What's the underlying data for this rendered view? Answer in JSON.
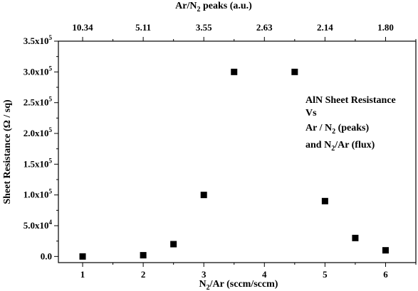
{
  "chart_data": {
    "type": "scatter",
    "title": "",
    "xlabel": "N",
    "xlabel_sub": "2",
    "xlabel_rest": "/Ar (sccm/sccm)",
    "ylabel": "Sheet Resistance (Ω / sq)",
    "top_xlabel": "Ar/N",
    "top_xlabel_sub": "2",
    "top_xlabel_rest": " peaks (a.u.)",
    "xlim": [
      0.6,
      6.5
    ],
    "ylim": [
      -10000,
      350000
    ],
    "x_ticks": [
      1,
      2,
      3,
      4,
      5,
      6
    ],
    "x_tick_labels": [
      "1",
      "2",
      "3",
      "4",
      "5",
      "6"
    ],
    "y_ticks": [
      0,
      50000,
      100000,
      150000,
      200000,
      250000,
      300000,
      350000
    ],
    "y_tick_mantissa": [
      "0.0",
      "5.0x10",
      "1.0x10",
      "1.5x10",
      "2.0x10",
      "2.5x10",
      "3.0x10",
      "3.5x10"
    ],
    "y_tick_exponent": [
      "",
      "4",
      "5",
      "5",
      "5",
      "5",
      "5",
      "5"
    ],
    "top_ticks": [
      1,
      2,
      3,
      4,
      5,
      6
    ],
    "top_tick_labels": [
      "10.34",
      "5.11",
      "3.55",
      "2.63",
      "2.14",
      "1.80"
    ],
    "grid": false,
    "series": [
      {
        "marker": "square",
        "color": "#000000",
        "x": [
          1,
          2,
          2.5,
          3,
          3.5,
          4.5,
          5,
          5.5,
          6
        ],
        "y": [
          0,
          2000,
          20000,
          100000,
          300000,
          300000,
          90000,
          30000,
          10000
        ]
      }
    ],
    "annotation": {
      "line1": "AlN Sheet Resistance",
      "line2": "Vs",
      "line3_a": "Ar / N",
      "line3_sub": "2",
      "line3_b": " (peaks)",
      "line4_a": "and N",
      "line4_sub": "2",
      "line4_b": "/Ar (flux)"
    }
  }
}
